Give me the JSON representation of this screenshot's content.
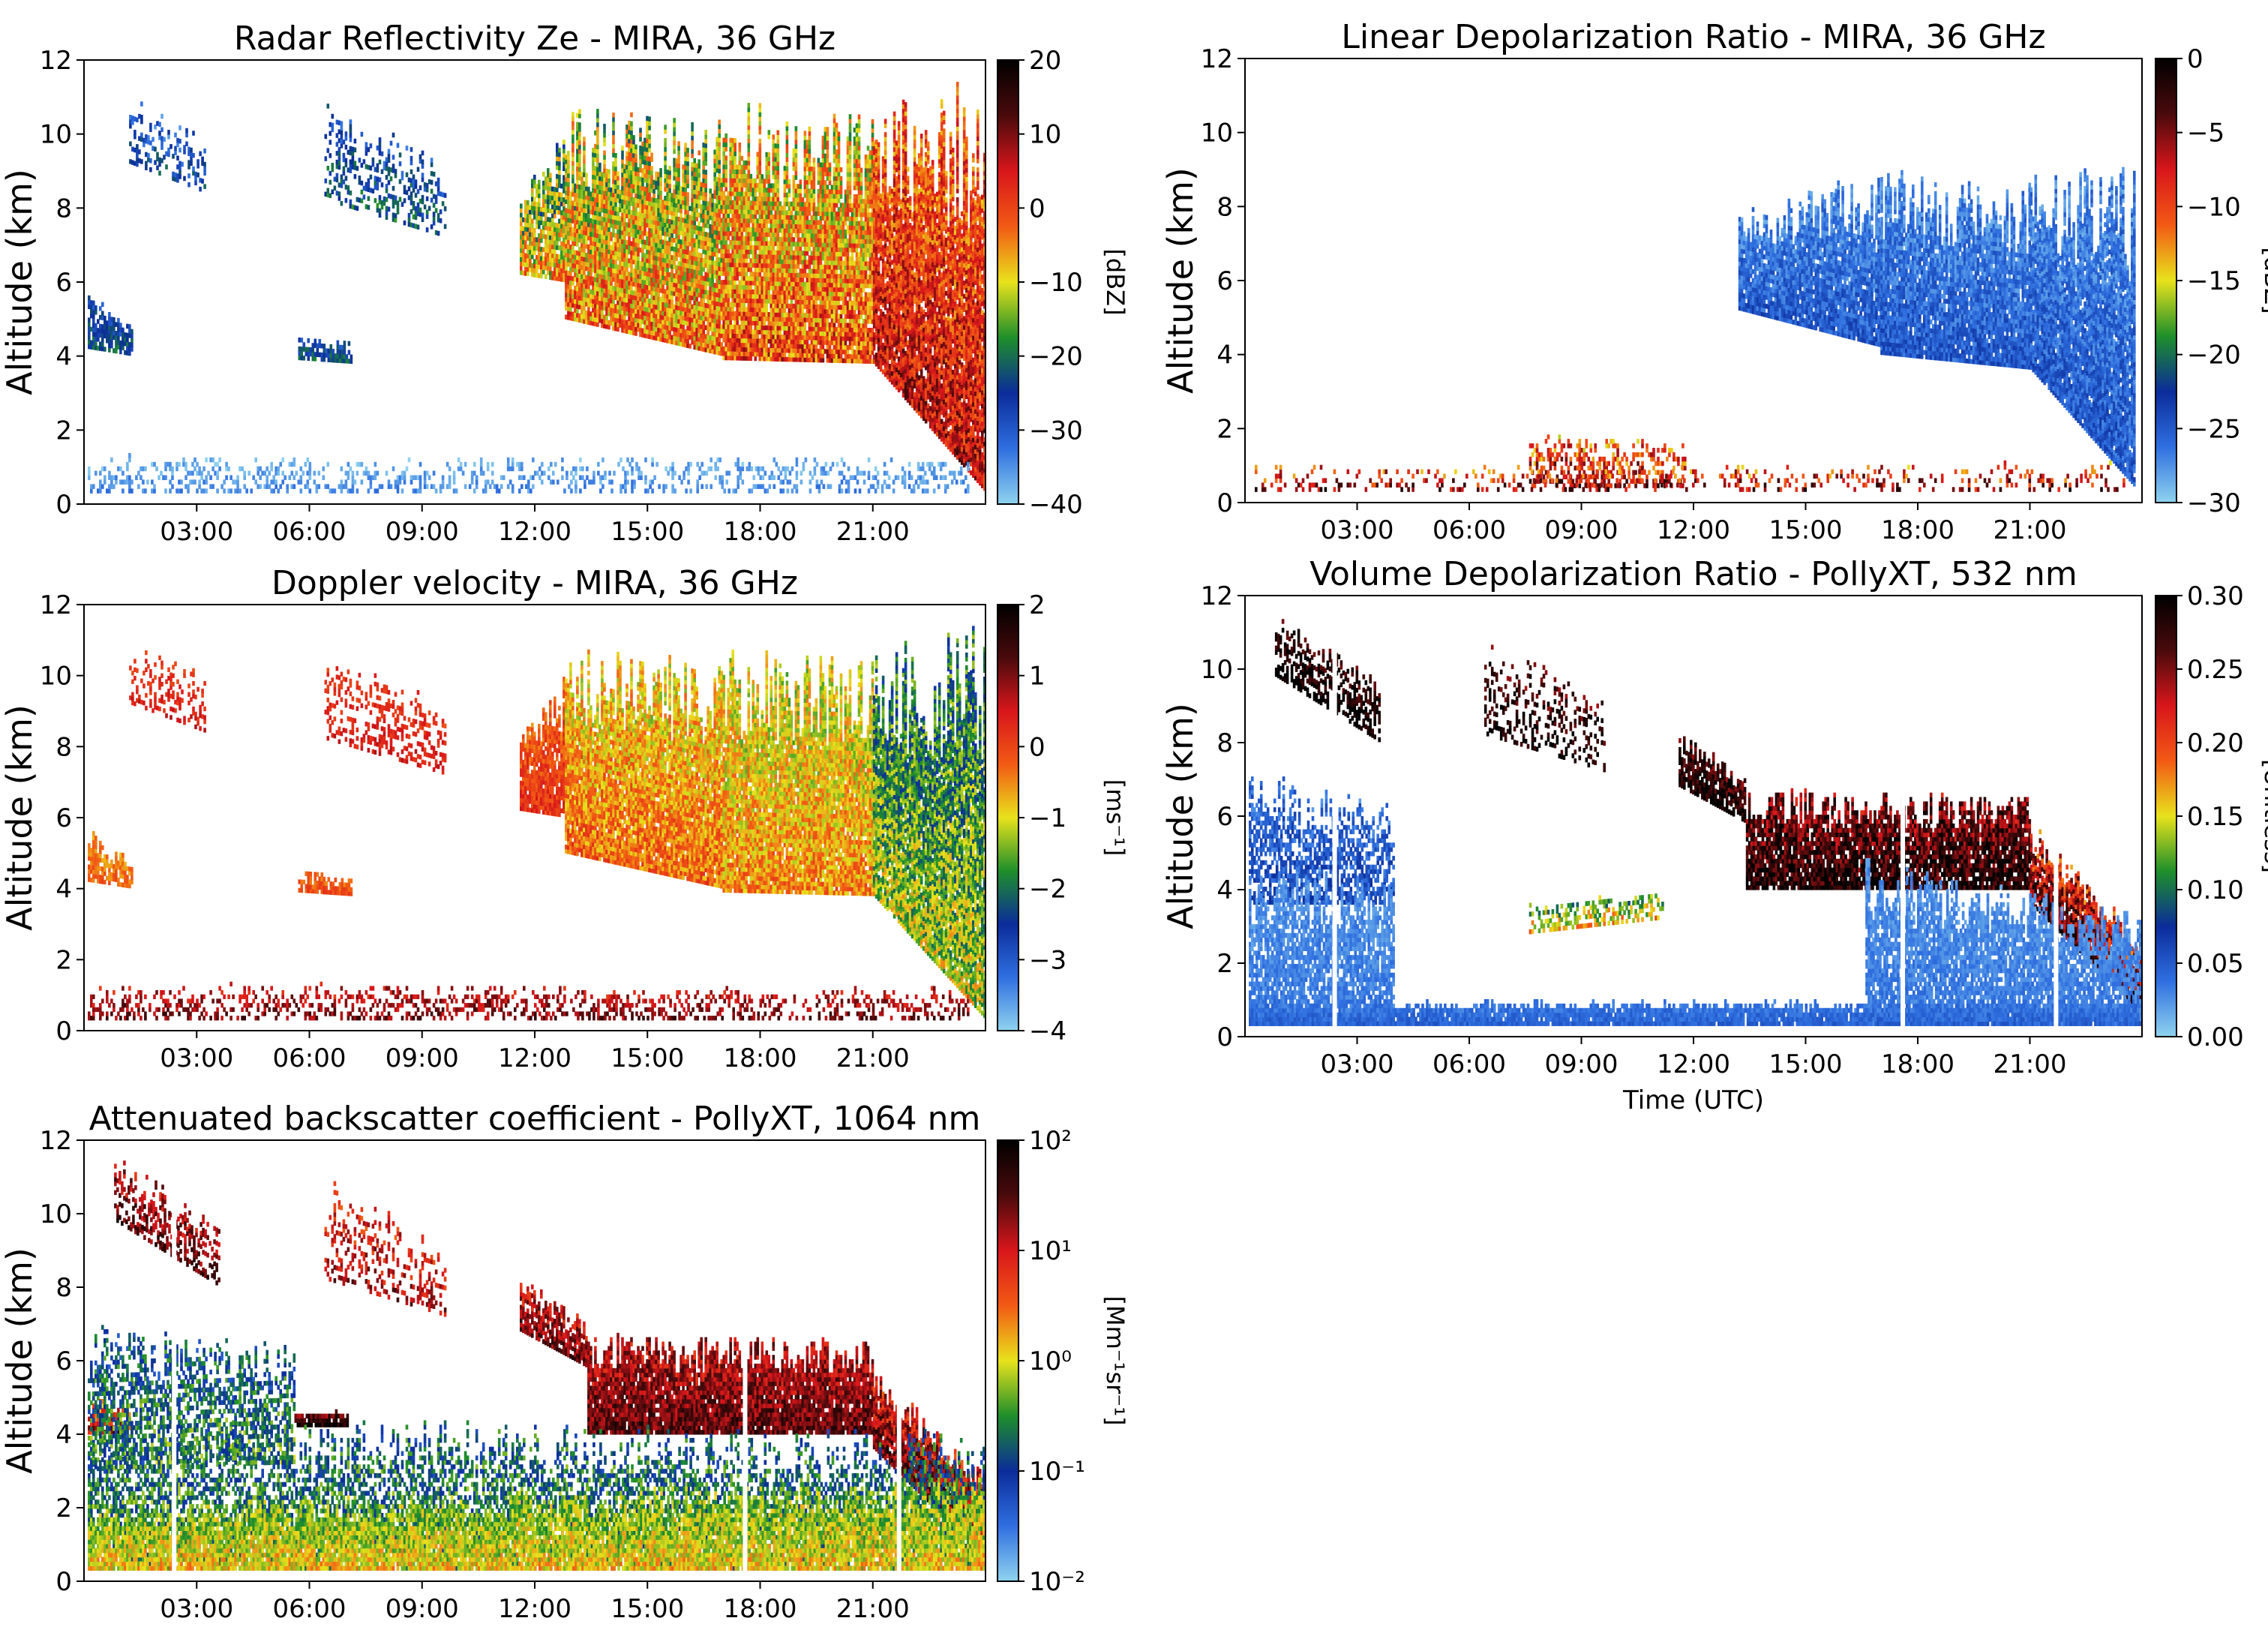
{
  "figure": {
    "background": "#ffffff"
  },
  "chart_data": [
    {
      "id": "ze",
      "type": "heatmap",
      "title": "Radar Reflectivity Ze - MIRA, 36 GHz",
      "xlabel": "",
      "ylabel": "Altitude (km)",
      "xlim": [
        0,
        24
      ],
      "ylim": [
        0,
        12
      ],
      "xticks": [
        3,
        6,
        9,
        12,
        15,
        18,
        21
      ],
      "xticklabels": [
        "03:00",
        "06:00",
        "09:00",
        "12:00",
        "15:00",
        "18:00",
        "21:00"
      ],
      "yticks": [
        0,
        2,
        4,
        6,
        8,
        10,
        12
      ],
      "yticklabels": [
        "0",
        "2",
        "4",
        "6",
        "8",
        "10",
        "12"
      ],
      "colorbar": {
        "label": "[dBZ]",
        "range": [
          -40,
          20
        ],
        "ticks": [
          -40,
          -30,
          -20,
          -10,
          0,
          10,
          20
        ],
        "ticklabels": [
          "−40",
          "−30",
          "−20",
          "−10",
          "0",
          "10",
          "20"
        ],
        "colors": [
          "#8fd3ef",
          "#2f6fe0",
          "#0b2c9a",
          "#1e8f2a",
          "#e8e21c",
          "#f25a14",
          "#d8161b",
          "#4a0a0c",
          "#000000"
        ]
      },
      "features": [
        {
          "t0": 1.2,
          "t1": 3.2,
          "b0": 9.2,
          "b1": 8.4,
          "h0": 1.4,
          "h1": 1.3,
          "v": -28,
          "dv": 6,
          "density": 0.35
        },
        {
          "t0": 6.4,
          "t1": 9.6,
          "b0": 8.2,
          "b1": 7.2,
          "h0": 2.2,
          "h1": 1.6,
          "v": -25,
          "dv": 6,
          "density": 0.35
        },
        {
          "t0": 0.1,
          "t1": 1.3,
          "b0": 4.2,
          "b1": 4.0,
          "h0": 1.2,
          "h1": 0.6,
          "v": -25,
          "dv": 5,
          "density": 0.8
        },
        {
          "t0": 5.7,
          "t1": 7.1,
          "b0": 3.9,
          "b1": 3.8,
          "h0": 0.5,
          "h1": 0.4,
          "v": -25,
          "dv": 5,
          "density": 0.8
        },
        {
          "t0": 11.6,
          "t1": 12.8,
          "b0": 6.2,
          "b1": 6.0,
          "h0": 1.8,
          "h1": 3.2,
          "v": -12,
          "dv": 10,
          "density": 0.9
        },
        {
          "t0": 12.8,
          "t1": 17.0,
          "b0": 5.0,
          "b1": 4.0,
          "h0": 4.6,
          "h1": 5.2,
          "v": -8,
          "dv": 10,
          "density": 0.95
        },
        {
          "t0": 17.0,
          "t1": 21.0,
          "b0": 3.9,
          "b1": 3.8,
          "h0": 5.6,
          "h1": 5.4,
          "v": -5,
          "dv": 10,
          "density": 0.95
        },
        {
          "t0": 21.0,
          "t1": 24.0,
          "b0": 3.8,
          "b1": 0.3,
          "h0": 5.6,
          "h1": 9.0,
          "v": 2,
          "dv": 8,
          "density": 0.95
        },
        {
          "t0": 0.1,
          "t1": 23.5,
          "b0": 0.3,
          "b1": 0.3,
          "h0": 0.8,
          "h1": 0.7,
          "v": -36,
          "dv": 3,
          "density": 0.3
        }
      ]
    },
    {
      "id": "vel",
      "type": "heatmap",
      "title": "Doppler velocity - MIRA, 36 GHz",
      "xlabel": "",
      "ylabel": "Altitude (km)",
      "xlim": [
        0,
        24
      ],
      "ylim": [
        0,
        12
      ],
      "xticks": [
        3,
        6,
        9,
        12,
        15,
        18,
        21
      ],
      "xticklabels": [
        "03:00",
        "06:00",
        "09:00",
        "12:00",
        "15:00",
        "18:00",
        "21:00"
      ],
      "yticks": [
        0,
        2,
        4,
        6,
        8,
        10,
        12
      ],
      "yticklabels": [
        "0",
        "2",
        "4",
        "6",
        "8",
        "10",
        "12"
      ],
      "colorbar": {
        "label": "[ms⁻¹]",
        "range": [
          -4,
          2
        ],
        "ticks": [
          -4,
          -3,
          -2,
          -1,
          0,
          1,
          2
        ],
        "ticklabels": [
          "−4",
          "−3",
          "−2",
          "−1",
          "0",
          "1",
          "2"
        ],
        "colors": [
          "#8fd3ef",
          "#2f6fe0",
          "#0b2c9a",
          "#1e8f2a",
          "#e8e21c",
          "#f25a14",
          "#d8161b",
          "#4a0a0c",
          "#000000"
        ]
      },
      "features": [
        {
          "t0": 1.2,
          "t1": 3.2,
          "b0": 9.2,
          "b1": 8.4,
          "h0": 1.4,
          "h1": 1.3,
          "v": 0.3,
          "dv": 0.3,
          "density": 0.35
        },
        {
          "t0": 6.4,
          "t1": 9.6,
          "b0": 8.2,
          "b1": 7.2,
          "h0": 2.2,
          "h1": 1.6,
          "v": 0.3,
          "dv": 0.3,
          "density": 0.35
        },
        {
          "t0": 0.1,
          "t1": 1.3,
          "b0": 4.2,
          "b1": 4.0,
          "h0": 1.2,
          "h1": 0.6,
          "v": -0.4,
          "dv": 0.3,
          "density": 0.8
        },
        {
          "t0": 5.7,
          "t1": 7.1,
          "b0": 3.9,
          "b1": 3.8,
          "h0": 0.5,
          "h1": 0.4,
          "v": -0.2,
          "dv": 0.3,
          "density": 0.8
        },
        {
          "t0": 11.6,
          "t1": 12.8,
          "b0": 6.2,
          "b1": 6.0,
          "h0": 1.8,
          "h1": 3.2,
          "v": 0.0,
          "dv": 0.4,
          "density": 0.9
        },
        {
          "t0": 12.8,
          "t1": 17.0,
          "b0": 5.0,
          "b1": 4.0,
          "h0": 4.6,
          "h1": 5.2,
          "v": -0.6,
          "dv": 0.6,
          "density": 0.95
        },
        {
          "t0": 17.0,
          "t1": 21.0,
          "b0": 3.9,
          "b1": 3.8,
          "h0": 5.6,
          "h1": 5.4,
          "v": -0.8,
          "dv": 0.6,
          "density": 0.95
        },
        {
          "t0": 21.0,
          "t1": 24.0,
          "b0": 3.8,
          "b1": 0.3,
          "h0": 5.6,
          "h1": 9.0,
          "v": -1.6,
          "dv": 0.8,
          "density": 0.95
        },
        {
          "t0": 0.1,
          "t1": 23.5,
          "b0": 0.3,
          "b1": 0.3,
          "h0": 0.8,
          "h1": 0.7,
          "v": 0.8,
          "dv": 0.5,
          "density": 0.35
        }
      ]
    },
    {
      "id": "beta",
      "type": "heatmap",
      "title": "Attenuated backscatter coefficient - PollyXT, 1064 nm",
      "xlabel": "",
      "ylabel": "Altitude (km)",
      "xlim": [
        0,
        24
      ],
      "ylim": [
        0,
        12
      ],
      "xticks": [
        3,
        6,
        9,
        12,
        15,
        18,
        21
      ],
      "xticklabels": [
        "03:00",
        "06:00",
        "09:00",
        "12:00",
        "15:00",
        "18:00",
        "21:00"
      ],
      "yticks": [
        0,
        2,
        4,
        6,
        8,
        10,
        12
      ],
      "yticklabels": [
        "0",
        "2",
        "4",
        "6",
        "8",
        "10",
        "12"
      ],
      "gaps": [
        2.4,
        17.6,
        21.7
      ],
      "colorbar": {
        "label": "[Mm⁻¹sr⁻¹]",
        "range": [
          -2,
          2
        ],
        "ticks": [
          -2,
          -1,
          0,
          1,
          2
        ],
        "ticklabels": [
          "10⁻²",
          "10⁻¹",
          "10⁰",
          "10¹",
          "10²"
        ],
        "colors": [
          "#8fd3ef",
          "#2f6fe0",
          "#0b2c9a",
          "#1e8f2a",
          "#e8e21c",
          "#f25a14",
          "#d8161b",
          "#4a0a0c",
          "#000000"
        ]
      },
      "features": [
        {
          "t0": 0.8,
          "t1": 3.6,
          "b0": 9.8,
          "b1": 8.0,
          "h0": 1.4,
          "h1": 1.4,
          "v": 1.3,
          "dv": 0.4,
          "density": 0.5
        },
        {
          "t0": 6.4,
          "t1": 9.6,
          "b0": 8.2,
          "b1": 7.2,
          "h0": 2.2,
          "h1": 1.6,
          "v": 1.0,
          "dv": 0.4,
          "density": 0.3
        },
        {
          "t0": 0.1,
          "t1": 1.3,
          "b0": 4.0,
          "b1": 4.0,
          "h0": 0.8,
          "h1": 0.6,
          "v": 0.8,
          "dv": 0.6,
          "density": 0.8
        },
        {
          "t0": 5.6,
          "t1": 7.0,
          "b0": 4.2,
          "b1": 4.2,
          "h0": 0.3,
          "h1": 0.3,
          "v": 1.6,
          "dv": 0.4,
          "density": 0.9
        },
        {
          "t0": 11.6,
          "t1": 13.4,
          "b0": 6.8,
          "b1": 5.8,
          "h0": 1.2,
          "h1": 1.0,
          "v": 1.2,
          "dv": 0.4,
          "density": 0.8
        },
        {
          "t0": 13.4,
          "t1": 21.0,
          "b0": 4.0,
          "b1": 4.0,
          "h0": 2.2,
          "h1": 2.0,
          "v": 1.3,
          "dv": 0.4,
          "density": 0.95
        },
        {
          "t0": 21.0,
          "t1": 24.0,
          "b0": 3.6,
          "b1": 0.6,
          "h0": 1.8,
          "h1": 1.8,
          "v": 1.2,
          "dv": 0.5,
          "density": 0.95
        },
        {
          "t0": 0.1,
          "t1": 5.6,
          "b0": 3.0,
          "b1": 3.2,
          "h0": 3.2,
          "h1": 2.6,
          "v": -0.7,
          "dv": 0.5,
          "density": 0.55
        },
        {
          "t0": 0.1,
          "t1": 24.0,
          "b0": 0.3,
          "b1": 0.3,
          "h0": 3.4,
          "h1": 3.0,
          "v": -0.6,
          "dv": 0.5,
          "density": 0.55
        },
        {
          "t0": 0.1,
          "t1": 24.0,
          "b0": 0.3,
          "b1": 0.3,
          "h0": 1.4,
          "h1": 2.0,
          "v": -0.1,
          "dv": 0.4,
          "density": 0.9
        }
      ]
    },
    {
      "id": "ldr",
      "type": "heatmap",
      "title": "Linear Depolarization Ratio - MIRA, 36 GHz",
      "xlabel": "",
      "ylabel": "Altitude (km)",
      "xlim": [
        0,
        24
      ],
      "ylim": [
        0,
        12
      ],
      "xticks": [
        3,
        6,
        9,
        12,
        15,
        18,
        21
      ],
      "xticklabels": [
        "03:00",
        "06:00",
        "09:00",
        "12:00",
        "15:00",
        "18:00",
        "21:00"
      ],
      "yticks": [
        0,
        2,
        4,
        6,
        8,
        10,
        12
      ],
      "yticklabels": [
        "0",
        "2",
        "4",
        "6",
        "8",
        "10",
        "12"
      ],
      "colorbar": {
        "label": "[dBZ]",
        "range": [
          -30,
          0
        ],
        "ticks": [
          -30,
          -25,
          -20,
          -15,
          -10,
          -5,
          0
        ],
        "ticklabels": [
          "−30",
          "−25",
          "−20",
          "−15",
          "−10",
          "−5",
          "0"
        ],
        "colors": [
          "#8fd3ef",
          "#2f6fe0",
          "#0b2c9a",
          "#1e8f2a",
          "#e8e21c",
          "#f25a14",
          "#d8161b",
          "#4a0a0c",
          "#000000"
        ]
      },
      "features": [
        {
          "t0": 13.2,
          "t1": 17.0,
          "b0": 5.2,
          "b1": 4.2,
          "h0": 2.2,
          "h1": 3.8,
          "v": -26,
          "dv": 2,
          "density": 0.95
        },
        {
          "t0": 17.0,
          "t1": 21.0,
          "b0": 4.0,
          "b1": 3.6,
          "h0": 4.0,
          "h1": 4.0,
          "v": -26,
          "dv": 2,
          "density": 0.95
        },
        {
          "t0": 21.0,
          "t1": 23.8,
          "b0": 3.6,
          "b1": 0.4,
          "h0": 4.2,
          "h1": 7.0,
          "v": -26,
          "dv": 2,
          "density": 0.95
        },
        {
          "t0": 7.6,
          "t1": 11.8,
          "b0": 0.4,
          "b1": 0.4,
          "h0": 1.2,
          "h1": 1.0,
          "v": -9,
          "dv": 5,
          "density": 0.45
        },
        {
          "t0": 0.2,
          "t1": 23.5,
          "b0": 0.3,
          "b1": 0.3,
          "h0": 0.5,
          "h1": 0.6,
          "v": -8,
          "dv": 5,
          "density": 0.2
        }
      ]
    },
    {
      "id": "vdr",
      "type": "heatmap",
      "title": "Volume Depolarization Ratio - PollyXT, 532 nm",
      "xlabel": "Time (UTC)",
      "ylabel": "Altitude (km)",
      "xlim": [
        0,
        24
      ],
      "ylim": [
        0,
        12
      ],
      "xticks": [
        3,
        6,
        9,
        12,
        15,
        18,
        21
      ],
      "xticklabels": [
        "03:00",
        "06:00",
        "09:00",
        "12:00",
        "15:00",
        "18:00",
        "21:00"
      ],
      "yticks": [
        0,
        2,
        4,
        6,
        8,
        10,
        12
      ],
      "yticklabels": [
        "0",
        "2",
        "4",
        "6",
        "8",
        "10",
        "12"
      ],
      "gaps": [
        2.4,
        17.6,
        21.7
      ],
      "colorbar": {
        "label": "[Unitless]",
        "range": [
          0,
          0.3
        ],
        "ticks": [
          0,
          0.05,
          0.1,
          0.15,
          0.2,
          0.25,
          0.3
        ],
        "ticklabels": [
          "0.00",
          "0.05",
          "0.10",
          "0.15",
          "0.20",
          "0.25",
          "0.30"
        ],
        "colors": [
          "#8fd3ef",
          "#2f6fe0",
          "#0b2c9a",
          "#1e8f2a",
          "#e8e21c",
          "#f25a14",
          "#d8161b",
          "#4a0a0c",
          "#000000"
        ]
      },
      "features": [
        {
          "t0": 0.8,
          "t1": 3.6,
          "b0": 9.8,
          "b1": 8.0,
          "h0": 1.4,
          "h1": 1.4,
          "v": 0.29,
          "dv": 0.03,
          "density": 0.55
        },
        {
          "t0": 6.4,
          "t1": 9.6,
          "b0": 8.2,
          "b1": 7.2,
          "h0": 2.2,
          "h1": 1.6,
          "v": 0.28,
          "dv": 0.03,
          "density": 0.3
        },
        {
          "t0": 11.6,
          "t1": 13.4,
          "b0": 6.8,
          "b1": 5.8,
          "h0": 1.2,
          "h1": 1.0,
          "v": 0.28,
          "dv": 0.03,
          "density": 0.8
        },
        {
          "t0": 13.4,
          "t1": 21.0,
          "b0": 4.0,
          "b1": 4.0,
          "h0": 2.2,
          "h1": 2.0,
          "v": 0.27,
          "dv": 0.04,
          "density": 0.9
        },
        {
          "t0": 21.0,
          "t1": 24.0,
          "b0": 3.6,
          "b1": 0.6,
          "h0": 1.8,
          "h1": 1.6,
          "v": 0.24,
          "dv": 0.05,
          "density": 0.9
        },
        {
          "t0": 0.1,
          "t1": 4.0,
          "b0": 3.6,
          "b1": 3.6,
          "h0": 3.0,
          "h1": 2.2,
          "v": 0.05,
          "dv": 0.02,
          "density": 0.6
        },
        {
          "t0": 0.1,
          "t1": 4.0,
          "b0": 0.3,
          "b1": 0.3,
          "h0": 3.4,
          "h1": 3.4,
          "v": 0.03,
          "dv": 0.01,
          "density": 0.8
        },
        {
          "t0": 16.6,
          "t1": 24.0,
          "b0": 0.3,
          "b1": 0.3,
          "h0": 3.7,
          "h1": 2.4,
          "v": 0.03,
          "dv": 0.01,
          "density": 0.85
        },
        {
          "t0": 0.1,
          "t1": 24.0,
          "b0": 0.3,
          "b1": 0.3,
          "h0": 0.5,
          "h1": 0.5,
          "v": 0.04,
          "dv": 0.01,
          "density": 0.95
        },
        {
          "t0": 7.6,
          "t1": 11.2,
          "b0": 2.8,
          "b1": 3.2,
          "h0": 0.6,
          "h1": 0.6,
          "v": 0.14,
          "dv": 0.04,
          "density": 0.45
        }
      ]
    }
  ]
}
